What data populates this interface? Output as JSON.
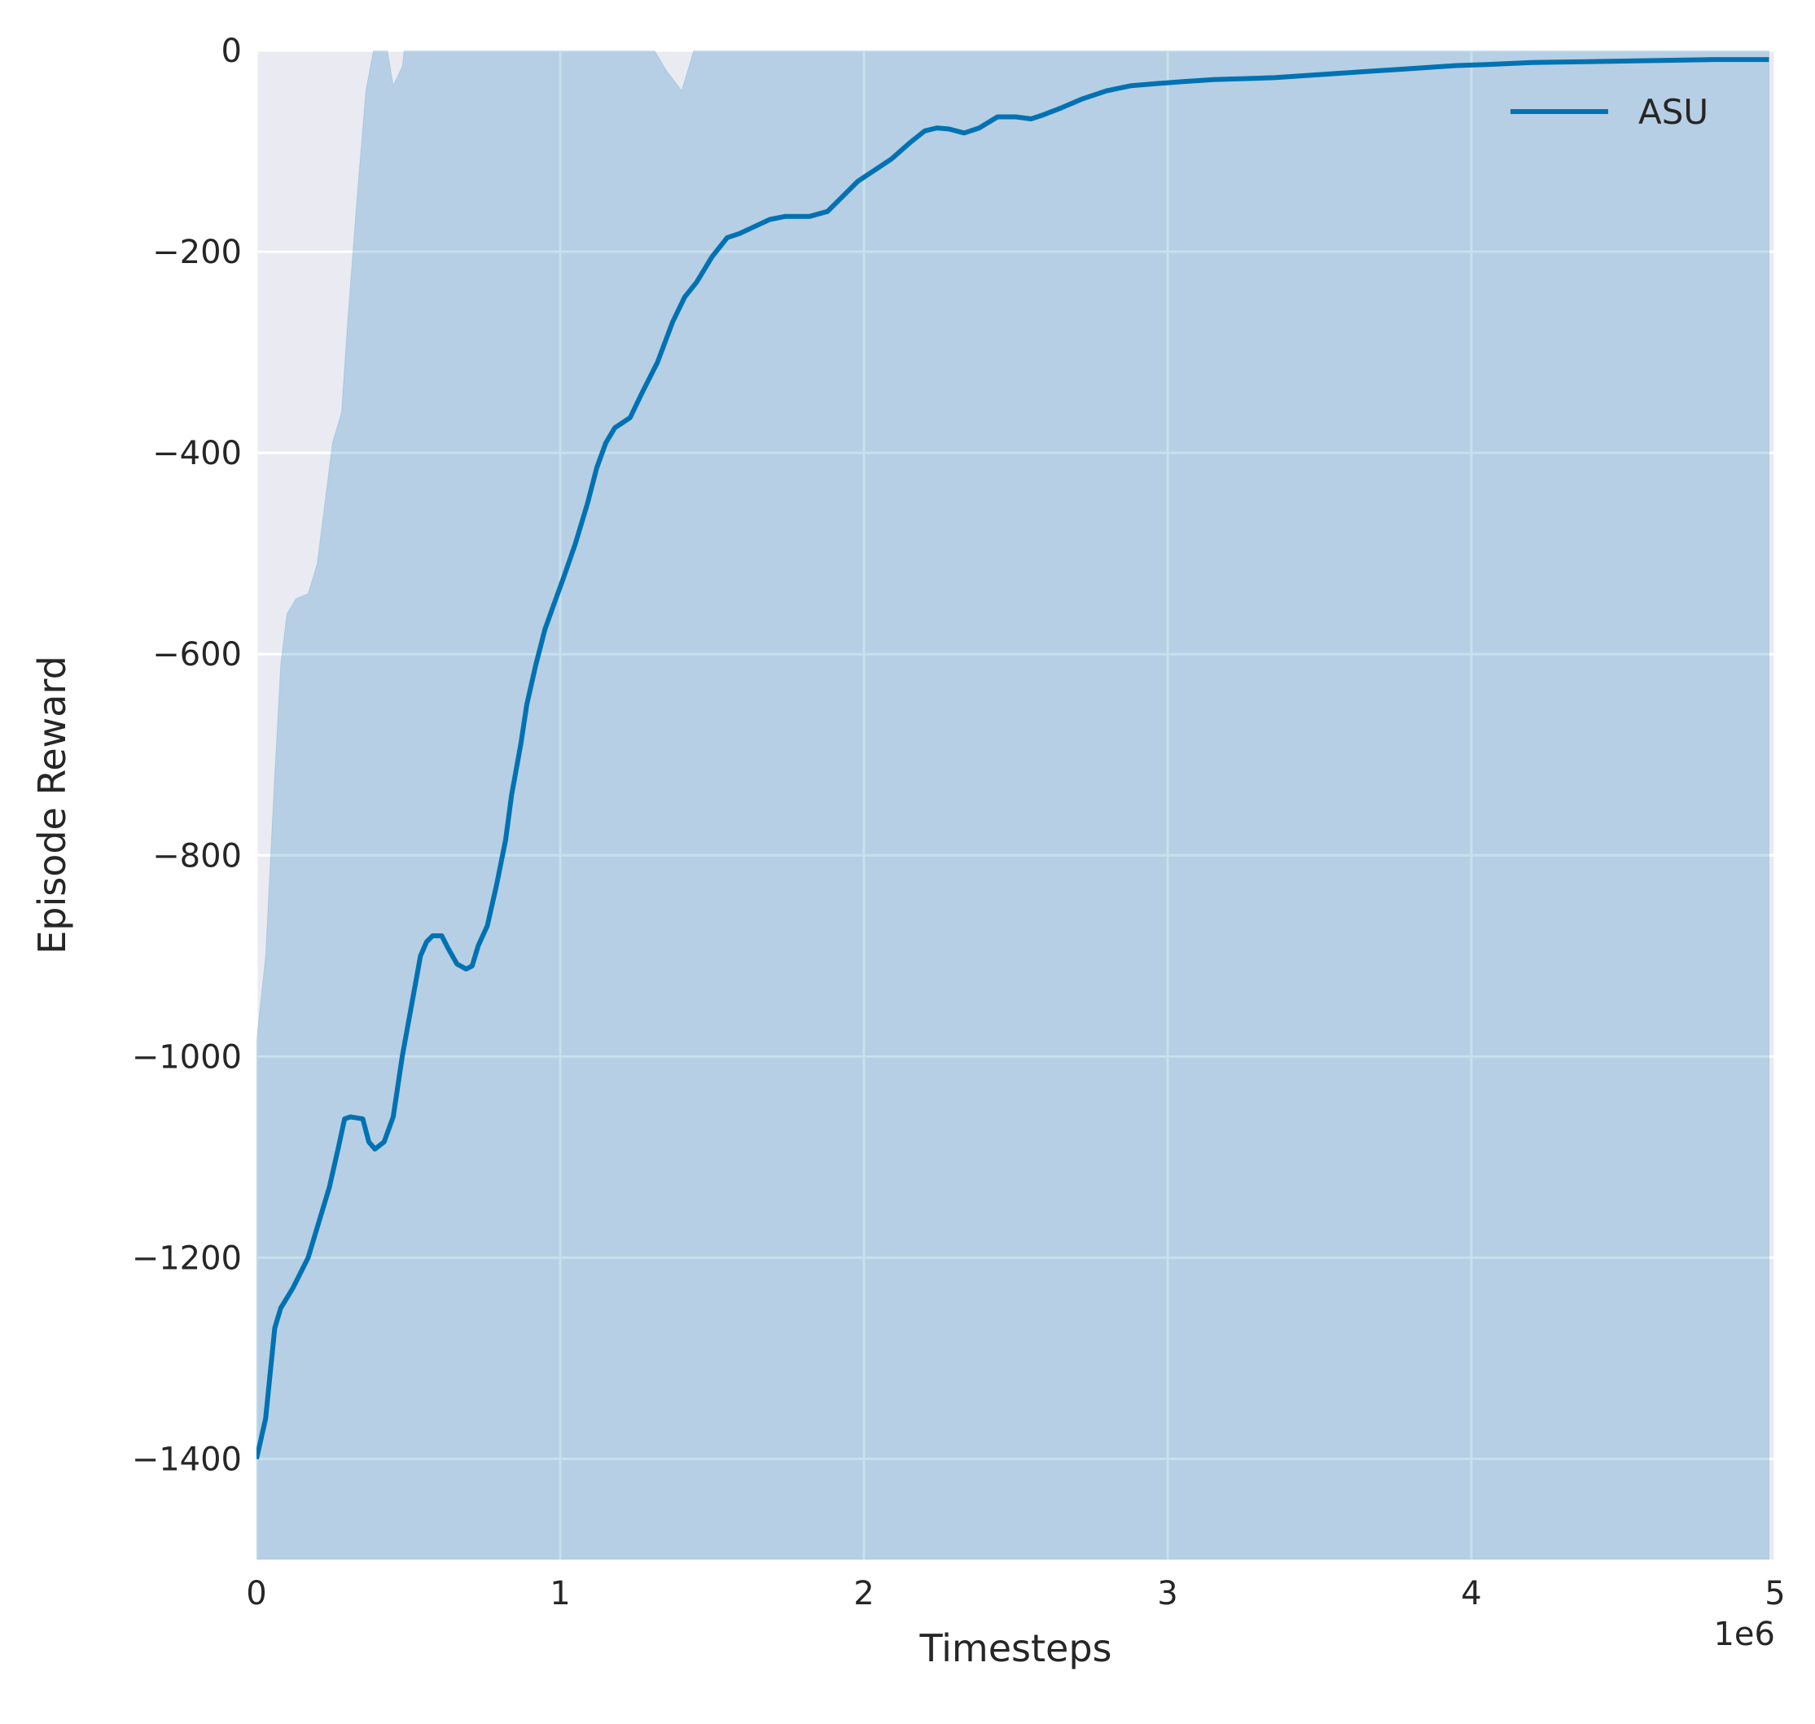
{
  "chart_data": {
    "type": "line",
    "xlabel": "Timesteps",
    "ylabel": "Episode Reward",
    "x_offset_label": "1e6",
    "xlim": [
      0,
      5
    ],
    "ylim": [
      -1500,
      0
    ],
    "xticks": [
      0,
      1,
      2,
      3,
      4,
      5
    ],
    "yticks": [
      0,
      -200,
      -400,
      -600,
      -800,
      -1000,
      -1200,
      -1400
    ],
    "xtick_labels": [
      "0",
      "1",
      "2",
      "3",
      "4",
      "5"
    ],
    "ytick_labels": [
      "0",
      "−200",
      "−400",
      "−600",
      "−800",
      "−1000",
      "−1200",
      "−1400"
    ],
    "grid": true,
    "legend_position": "top-right",
    "background_color": "#eaeaf2",
    "grid_color": "#ffffff",
    "series": [
      {
        "name": "ASU",
        "color": "#0072b2",
        "x": [
          0,
          0.03,
          0.06,
          0.08,
          0.12,
          0.17,
          0.2,
          0.24,
          0.27,
          0.29,
          0.31,
          0.35,
          0.37,
          0.39,
          0.42,
          0.45,
          0.48,
          0.51,
          0.54,
          0.56,
          0.58,
          0.61,
          0.63,
          0.66,
          0.69,
          0.71,
          0.73,
          0.76,
          0.79,
          0.82,
          0.84,
          0.87,
          0.89,
          0.92,
          0.95,
          0.98,
          1.01,
          1.05,
          1.09,
          1.12,
          1.15,
          1.18,
          1.23,
          1.27,
          1.32,
          1.37,
          1.41,
          1.45,
          1.5,
          1.55,
          1.59,
          1.64,
          1.69,
          1.74,
          1.82,
          1.88,
          1.93,
          1.98,
          2.04,
          2.09,
          2.15,
          2.2,
          2.24,
          2.28,
          2.33,
          2.38,
          2.44,
          2.5,
          2.55,
          2.59,
          2.65,
          2.72,
          2.8,
          2.88,
          2.96,
          3.05,
          3.15,
          3.25,
          3.35,
          3.45,
          3.55,
          3.65,
          3.75,
          3.85,
          3.95,
          4.05,
          4.2,
          4.4,
          4.6,
          4.8,
          4.98
        ],
        "y": [
          -1400,
          -1360,
          -1270,
          -1250,
          -1230,
          -1200,
          -1170,
          -1130,
          -1090,
          -1062,
          -1060,
          -1062,
          -1085,
          -1092,
          -1085,
          -1060,
          -1000,
          -950,
          -900,
          -886,
          -880,
          -880,
          -892,
          -908,
          -913,
          -910,
          -890,
          -870,
          -830,
          -785,
          -740,
          -690,
          -650,
          -610,
          -575,
          -550,
          -525,
          -490,
          -450,
          -415,
          -390,
          -375,
          -365,
          -340,
          -310,
          -270,
          -245,
          -230,
          -205,
          -186,
          -182,
          -175,
          -168,
          -165,
          -165,
          -160,
          -145,
          -130,
          -118,
          -108,
          -92,
          -80,
          -77,
          -78,
          -82,
          -77,
          -66,
          -66,
          -68,
          -64,
          -57,
          -48,
          -40,
          -35,
          -33,
          -31,
          -29,
          -28,
          -27,
          -25,
          -23,
          -21,
          -19,
          -17,
          -15,
          -14,
          -12,
          -11,
          -10,
          -9,
          -9
        ]
      }
    ],
    "band": {
      "color": "#0072b2",
      "opacity": 0.22,
      "x": [
        0,
        0.03,
        0.06,
        0.08,
        0.1,
        0.13,
        0.17,
        0.2,
        0.25,
        0.28,
        0.3,
        0.33,
        0.36,
        0.39,
        0.42,
        0.45,
        0.48,
        0.52,
        0.56,
        0.6,
        0.64,
        0.67,
        0.7,
        0.73,
        0.76,
        0.8,
        0.85,
        0.9,
        0.94,
        0.98,
        1.02,
        1.06,
        1.1,
        1.15,
        1.2,
        1.25,
        1.3,
        1.35,
        1.4,
        1.45,
        1.5,
        1.55,
        1.6,
        1.65,
        1.7,
        1.75,
        1.8,
        1.9,
        2,
        2.1,
        2.2,
        2.3,
        2.4,
        2.5,
        2.6,
        2.7,
        2.8,
        2.9,
        3,
        3.2,
        3.4,
        3.6,
        3.8,
        4,
        4.3,
        4.6,
        4.98
      ],
      "upper": [
        -985,
        -900,
        -720,
        -610,
        -560,
        -545,
        -540,
        -510,
        -390,
        -360,
        -270,
        -150,
        -40,
        8,
        20,
        -35,
        -16,
        80,
        160,
        170,
        200,
        280,
        318,
        340,
        335,
        300,
        250,
        240,
        270,
        320,
        310,
        270,
        200,
        150,
        110,
        20,
        5,
        -20,
        -40,
        10,
        40,
        80,
        120,
        160,
        190,
        200,
        200,
        196,
        196,
        196,
        196,
        196,
        196,
        196,
        196,
        196,
        196,
        196,
        196,
        196,
        196,
        196,
        196,
        196,
        196,
        196,
        196
      ],
      "lower": [
        -1500,
        -1500,
        -1500,
        -1500,
        -1500,
        -1500,
        -1500,
        -1500,
        -1500,
        -1500,
        -1500,
        -1500,
        -1500,
        -1500,
        -1500,
        -1500,
        -1500,
        -1500,
        -1500,
        -1500,
        -1500,
        -1500,
        -1500,
        -1500,
        -1500,
        -1500,
        -1500,
        -1500,
        -1500,
        -1500,
        -1500,
        -1500,
        -1500,
        -1500,
        -1500,
        -1500,
        -1500,
        -1500,
        -1500,
        -1500,
        -1500,
        -1500,
        -1500,
        -1500,
        -1500,
        -1500,
        -1500,
        -1500,
        -1500,
        -1500,
        -1500,
        -1500,
        -1500,
        -1500,
        -1500,
        -1500,
        -1500,
        -1500,
        -1500,
        -1500,
        -1500,
        -1500,
        -1500,
        -1500,
        -1500,
        -1500,
        -1500
      ]
    }
  }
}
